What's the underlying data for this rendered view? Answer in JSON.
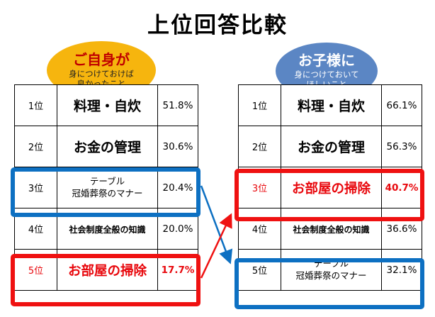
{
  "title": "上位回答比較",
  "left_label": {
    "head": "ご自身が",
    "line1": "身につけておけば",
    "line2": "良かったこと"
  },
  "right_label": {
    "head": "お子様に",
    "line1": "身につけておいて",
    "line2": "ほしいこと"
  },
  "left_rows": [
    {
      "rank": "1位",
      "item": "料理・自炊",
      "pct": "51.8%"
    },
    {
      "rank": "2位",
      "item": "お金の管理",
      "pct": "30.6%"
    },
    {
      "rank": "3位",
      "item_line1": "テーブル",
      "item_line2": "冠婚葬祭のマナー",
      "pct": "20.4%"
    },
    {
      "rank": "4位",
      "item": "社会制度全般の知識",
      "pct": "20.0%"
    },
    {
      "rank": "5位",
      "item": "お部屋の掃除",
      "pct": "17.7%"
    }
  ],
  "right_rows": [
    {
      "rank": "1位",
      "item": "料理・自炊",
      "pct": "66.1%"
    },
    {
      "rank": "2位",
      "item": "お金の管理",
      "pct": "56.3%"
    },
    {
      "rank": "3位",
      "item": "お部屋の掃除",
      "pct": "40.7%"
    },
    {
      "rank": "4位",
      "item": "社会制度全般の知識",
      "pct": "36.6%"
    },
    {
      "rank": "5位",
      "item_line1": "テーブル",
      "item_line2": "冠婚葬祭のマナー",
      "pct": "32.1%"
    }
  ],
  "colors": {
    "highlight_blue": "#0d70c2",
    "highlight_red": "#ef1111",
    "bubble_left": "#f6b50e",
    "bubble_right": "#5b86c4"
  }
}
